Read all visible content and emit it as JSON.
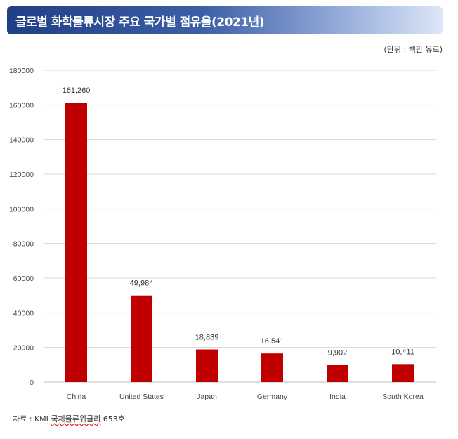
{
  "header": {
    "title": "글로벌 화학물류시장 주요 국가별 점유율(2021년)"
  },
  "unit_note": "(단위 : 백만 유로)",
  "source": {
    "prefix": "자료 : KMI ",
    "publication": "국제물류위클리",
    "suffix": " 653호"
  },
  "colors": {
    "bar": "#c00000",
    "grid": "#d9d9d9",
    "title_bg_start": "#1f3f86"
  },
  "chart_data": {
    "type": "bar",
    "categories": [
      "China",
      "United States",
      "Japan",
      "Germany",
      "India",
      "South Korea"
    ],
    "values": [
      161260,
      49984,
      18839,
      16541,
      9902,
      10411
    ],
    "data_labels": [
      "161,260",
      "49,984",
      "18,839",
      "16,541",
      "9,902",
      "10,411"
    ],
    "yticks": [
      0,
      20000,
      40000,
      60000,
      80000,
      100000,
      120000,
      140000,
      160000,
      180000
    ],
    "ylim": [
      0,
      180000
    ],
    "grid": true,
    "legend": "none"
  }
}
